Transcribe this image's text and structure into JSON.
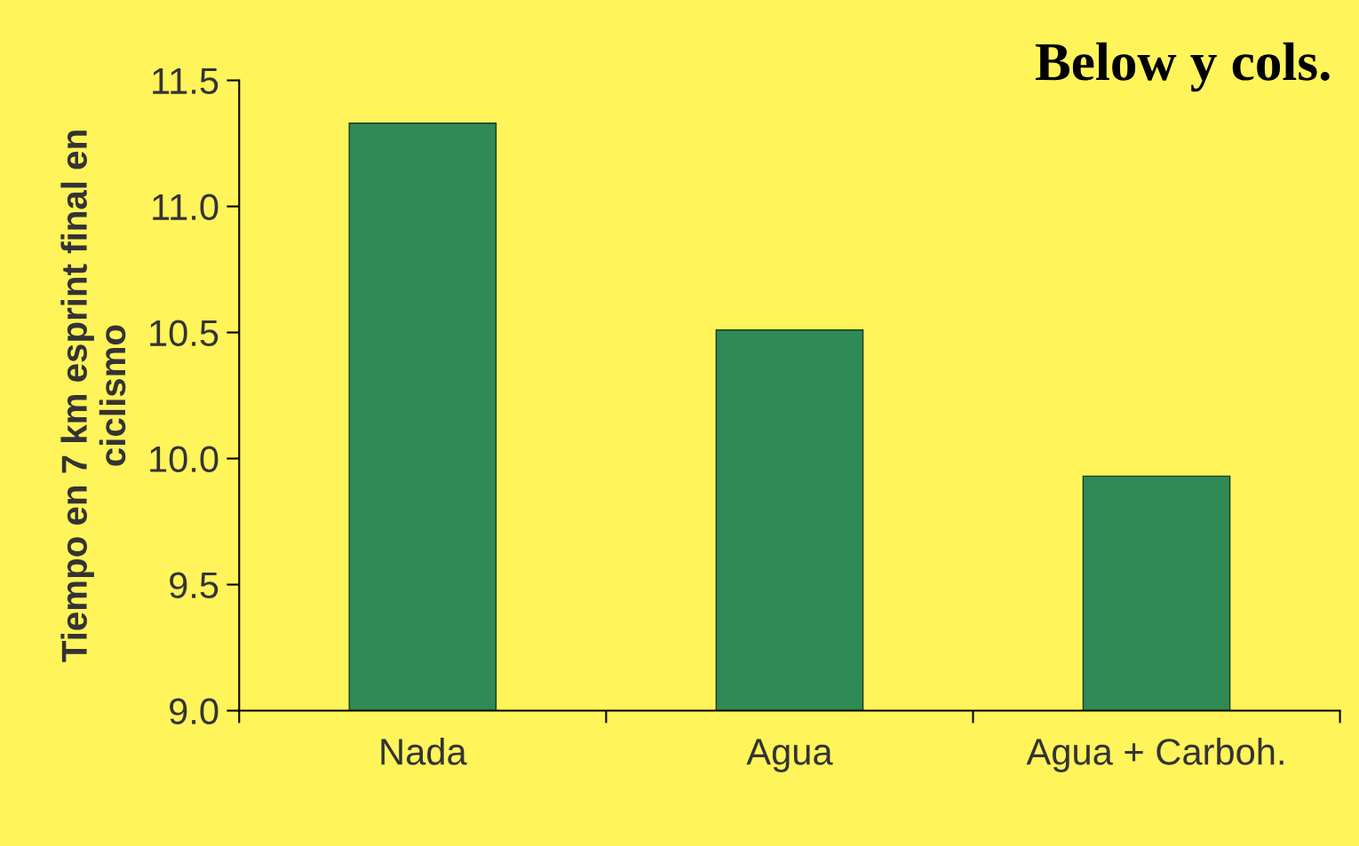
{
  "chart_data": {
    "type": "bar",
    "title": "Below y cols.",
    "ylabel": "Tiempo en 7 km esprint final en\nciclismo",
    "categories": [
      "Nada",
      "Agua",
      "Agua + Carboh."
    ],
    "values": [
      11.33,
      10.51,
      9.93
    ],
    "color": "#2f8a55",
    "ylim": [
      9.0,
      11.5
    ],
    "yticks": [
      {
        "value": 9.0,
        "label": "9.0"
      },
      {
        "value": 9.5,
        "label": "9.5"
      },
      {
        "value": 10.0,
        "label": "10.0"
      },
      {
        "value": 10.5,
        "label": "10.5"
      },
      {
        "value": 11.0,
        "label": "11.0"
      },
      {
        "value": 11.5,
        "label": "11.5"
      }
    ],
    "grid": false
  }
}
